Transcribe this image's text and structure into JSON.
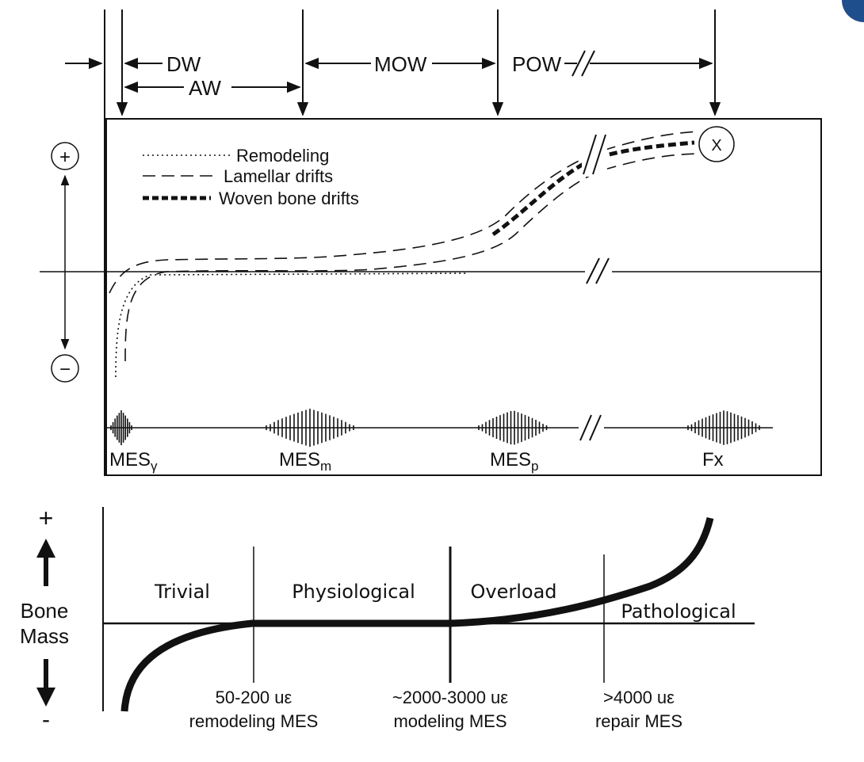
{
  "top_panel": {
    "window_labels": {
      "dw": "DW",
      "aw": "AW",
      "mow": "MOW",
      "pow": "POW"
    },
    "sign_plus": "+",
    "sign_minus": "−",
    "legend": [
      {
        "label": "Remodeling",
        "style": "dotted"
      },
      {
        "label": "Lamellar drifts",
        "style": "dashed"
      },
      {
        "label": "Woven bone drifts",
        "style": "heavy-dashed"
      }
    ],
    "marker_x": "X",
    "signal_labels": {
      "mes_v_base": "MES",
      "mes_v_sub": "γ",
      "mes_m_base": "MES",
      "mes_m_sub": "m",
      "mes_p_base": "MES",
      "mes_p_sub": "p",
      "fx": "Fx"
    }
  },
  "bottom_panel": {
    "y_label_line1": "Bone",
    "y_label_line2": "Mass",
    "plus": "+",
    "minus": "-",
    "zones": [
      "Trivial",
      "Physiological",
      "Overload",
      "Pathological"
    ],
    "thresholds": [
      {
        "value": "50-200 uε",
        "label": "remodeling MES"
      },
      {
        "value": "~2000-3000 uε",
        "label": "modeling MES"
      },
      {
        "value": ">4000 uε",
        "label": "repair MES"
      }
    ]
  },
  "colors": {
    "ink": "#111111",
    "corner_accent": "#1f4e8c"
  }
}
